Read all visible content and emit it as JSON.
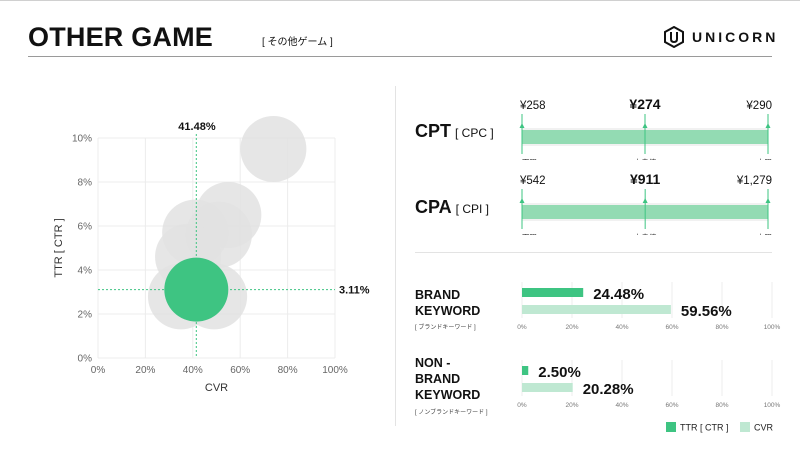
{
  "header": {
    "title": "OTHER GAME",
    "subtitle": "[ その他ゲーム ]",
    "logo_text": "UNICORN"
  },
  "colors": {
    "green": "#3ec482",
    "light_green": "#bfe8d2",
    "bar_green": "#93dbb3",
    "bubble_gray": "#e2e2e2"
  },
  "chart_data": [
    {
      "type": "scatter",
      "name": "bubble",
      "xlabel": "CVR",
      "ylabel": "TTR [ CTR ]",
      "xlim": [
        0,
        100
      ],
      "ylim": [
        0,
        10
      ],
      "x_ticks": [
        "0%",
        "20%",
        "40%",
        "60%",
        "80%",
        "100%"
      ],
      "y_ticks": [
        "0%",
        "2%",
        "4%",
        "6%",
        "8%",
        "10%"
      ],
      "grid": true,
      "points": [
        {
          "x": 74,
          "y": 9.5,
          "highlight": false
        },
        {
          "x": 55,
          "y": 6.5,
          "highlight": false
        },
        {
          "x": 41,
          "y": 5.7,
          "highlight": false
        },
        {
          "x": 51,
          "y": 5.6,
          "highlight": false
        },
        {
          "x": 38,
          "y": 4.6,
          "highlight": false
        },
        {
          "x": 49,
          "y": 2.8,
          "highlight": false
        },
        {
          "x": 35,
          "y": 2.8,
          "highlight": false
        },
        {
          "x": 41.48,
          "y": 3.11,
          "highlight": true
        }
      ],
      "annotations": {
        "x_ref": 41.48,
        "x_ref_label": "41.48%",
        "y_ref": 3.11,
        "y_ref_label": "3.11%"
      }
    },
    {
      "type": "range",
      "name": "cpt",
      "label": "CPT",
      "sublabel": "[ CPC ]",
      "min_label": "¥258",
      "median_label": "¥274",
      "max_label": "¥290",
      "min": 258,
      "median": 274,
      "max": 290,
      "tick_labels": [
        "下限",
        "中央値",
        "上限"
      ]
    },
    {
      "type": "range",
      "name": "cpa",
      "label": "CPA",
      "sublabel": "[ CPI ]",
      "min_label": "¥542",
      "median_label": "¥911",
      "max_label": "¥1,279",
      "min": 542,
      "median": 911,
      "max": 1279,
      "tick_labels": [
        "下限",
        "中央値",
        "上限"
      ]
    },
    {
      "type": "bar",
      "name": "brand",
      "label": "BRAND\nKEYWORD",
      "sublabel": "[ ブランドキーワード ]",
      "series": [
        {
          "name": "TTR [ CTR ]",
          "value": 24.48,
          "label": "24.48%"
        },
        {
          "name": "CVR",
          "value": 59.56,
          "label": "59.56%"
        }
      ],
      "xlim": [
        0,
        100
      ],
      "x_ticks": [
        "0%",
        "20%",
        "40%",
        "60%",
        "80%",
        "100%"
      ]
    },
    {
      "type": "bar",
      "name": "nonbrand",
      "label": "NON -\nBRAND\nKEYWORD",
      "sublabel": "[ ノンブランドキーワード ]",
      "series": [
        {
          "name": "TTR [ CTR ]",
          "value": 2.5,
          "label": "2.50%"
        },
        {
          "name": "CVR",
          "value": 20.28,
          "label": "20.28%"
        }
      ],
      "xlim": [
        0,
        100
      ],
      "x_ticks": [
        "0%",
        "20%",
        "40%",
        "60%",
        "80%",
        "100%"
      ]
    }
  ],
  "legend": {
    "ttr_label": "TTR [ CTR ]",
    "cvr_label": "CVR",
    "position": "bottom-right"
  }
}
